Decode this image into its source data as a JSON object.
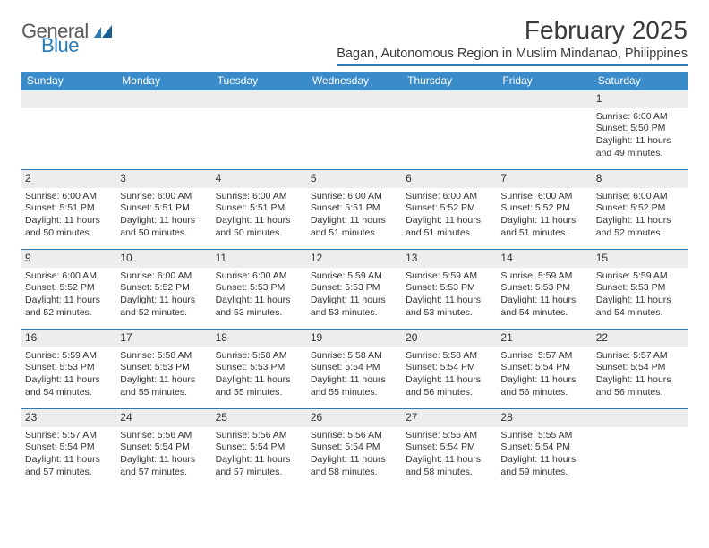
{
  "brand": {
    "general": "General",
    "blue": "Blue"
  },
  "title": "February 2025",
  "location": "Bagan, Autonomous Region in Muslim Mindanao, Philippines",
  "colors": {
    "header_bar": "#3a8bc9",
    "rule": "#2a7ab8",
    "daynum_bg": "#ededed",
    "text": "#333333",
    "logo_gray": "#5a5a5a",
    "logo_blue": "#2a7ab8",
    "background": "#ffffff"
  },
  "typography": {
    "title_fontsize": 28,
    "location_fontsize": 14.5,
    "dow_fontsize": 12,
    "daynum_fontsize": 12,
    "body_fontsize": 10.5
  },
  "dow": [
    "Sunday",
    "Monday",
    "Tuesday",
    "Wednesday",
    "Thursday",
    "Friday",
    "Saturday"
  ],
  "weeks": [
    [
      {
        "n": "",
        "sunrise": "",
        "sunset": "",
        "daylight": ""
      },
      {
        "n": "",
        "sunrise": "",
        "sunset": "",
        "daylight": ""
      },
      {
        "n": "",
        "sunrise": "",
        "sunset": "",
        "daylight": ""
      },
      {
        "n": "",
        "sunrise": "",
        "sunset": "",
        "daylight": ""
      },
      {
        "n": "",
        "sunrise": "",
        "sunset": "",
        "daylight": ""
      },
      {
        "n": "",
        "sunrise": "",
        "sunset": "",
        "daylight": ""
      },
      {
        "n": "1",
        "sunrise": "Sunrise: 6:00 AM",
        "sunset": "Sunset: 5:50 PM",
        "daylight": "Daylight: 11 hours and 49 minutes."
      }
    ],
    [
      {
        "n": "2",
        "sunrise": "Sunrise: 6:00 AM",
        "sunset": "Sunset: 5:51 PM",
        "daylight": "Daylight: 11 hours and 50 minutes."
      },
      {
        "n": "3",
        "sunrise": "Sunrise: 6:00 AM",
        "sunset": "Sunset: 5:51 PM",
        "daylight": "Daylight: 11 hours and 50 minutes."
      },
      {
        "n": "4",
        "sunrise": "Sunrise: 6:00 AM",
        "sunset": "Sunset: 5:51 PM",
        "daylight": "Daylight: 11 hours and 50 minutes."
      },
      {
        "n": "5",
        "sunrise": "Sunrise: 6:00 AM",
        "sunset": "Sunset: 5:51 PM",
        "daylight": "Daylight: 11 hours and 51 minutes."
      },
      {
        "n": "6",
        "sunrise": "Sunrise: 6:00 AM",
        "sunset": "Sunset: 5:52 PM",
        "daylight": "Daylight: 11 hours and 51 minutes."
      },
      {
        "n": "7",
        "sunrise": "Sunrise: 6:00 AM",
        "sunset": "Sunset: 5:52 PM",
        "daylight": "Daylight: 11 hours and 51 minutes."
      },
      {
        "n": "8",
        "sunrise": "Sunrise: 6:00 AM",
        "sunset": "Sunset: 5:52 PM",
        "daylight": "Daylight: 11 hours and 52 minutes."
      }
    ],
    [
      {
        "n": "9",
        "sunrise": "Sunrise: 6:00 AM",
        "sunset": "Sunset: 5:52 PM",
        "daylight": "Daylight: 11 hours and 52 minutes."
      },
      {
        "n": "10",
        "sunrise": "Sunrise: 6:00 AM",
        "sunset": "Sunset: 5:52 PM",
        "daylight": "Daylight: 11 hours and 52 minutes."
      },
      {
        "n": "11",
        "sunrise": "Sunrise: 6:00 AM",
        "sunset": "Sunset: 5:53 PM",
        "daylight": "Daylight: 11 hours and 53 minutes."
      },
      {
        "n": "12",
        "sunrise": "Sunrise: 5:59 AM",
        "sunset": "Sunset: 5:53 PM",
        "daylight": "Daylight: 11 hours and 53 minutes."
      },
      {
        "n": "13",
        "sunrise": "Sunrise: 5:59 AM",
        "sunset": "Sunset: 5:53 PM",
        "daylight": "Daylight: 11 hours and 53 minutes."
      },
      {
        "n": "14",
        "sunrise": "Sunrise: 5:59 AM",
        "sunset": "Sunset: 5:53 PM",
        "daylight": "Daylight: 11 hours and 54 minutes."
      },
      {
        "n": "15",
        "sunrise": "Sunrise: 5:59 AM",
        "sunset": "Sunset: 5:53 PM",
        "daylight": "Daylight: 11 hours and 54 minutes."
      }
    ],
    [
      {
        "n": "16",
        "sunrise": "Sunrise: 5:59 AM",
        "sunset": "Sunset: 5:53 PM",
        "daylight": "Daylight: 11 hours and 54 minutes."
      },
      {
        "n": "17",
        "sunrise": "Sunrise: 5:58 AM",
        "sunset": "Sunset: 5:53 PM",
        "daylight": "Daylight: 11 hours and 55 minutes."
      },
      {
        "n": "18",
        "sunrise": "Sunrise: 5:58 AM",
        "sunset": "Sunset: 5:53 PM",
        "daylight": "Daylight: 11 hours and 55 minutes."
      },
      {
        "n": "19",
        "sunrise": "Sunrise: 5:58 AM",
        "sunset": "Sunset: 5:54 PM",
        "daylight": "Daylight: 11 hours and 55 minutes."
      },
      {
        "n": "20",
        "sunrise": "Sunrise: 5:58 AM",
        "sunset": "Sunset: 5:54 PM",
        "daylight": "Daylight: 11 hours and 56 minutes."
      },
      {
        "n": "21",
        "sunrise": "Sunrise: 5:57 AM",
        "sunset": "Sunset: 5:54 PM",
        "daylight": "Daylight: 11 hours and 56 minutes."
      },
      {
        "n": "22",
        "sunrise": "Sunrise: 5:57 AM",
        "sunset": "Sunset: 5:54 PM",
        "daylight": "Daylight: 11 hours and 56 minutes."
      }
    ],
    [
      {
        "n": "23",
        "sunrise": "Sunrise: 5:57 AM",
        "sunset": "Sunset: 5:54 PM",
        "daylight": "Daylight: 11 hours and 57 minutes."
      },
      {
        "n": "24",
        "sunrise": "Sunrise: 5:56 AM",
        "sunset": "Sunset: 5:54 PM",
        "daylight": "Daylight: 11 hours and 57 minutes."
      },
      {
        "n": "25",
        "sunrise": "Sunrise: 5:56 AM",
        "sunset": "Sunset: 5:54 PM",
        "daylight": "Daylight: 11 hours and 57 minutes."
      },
      {
        "n": "26",
        "sunrise": "Sunrise: 5:56 AM",
        "sunset": "Sunset: 5:54 PM",
        "daylight": "Daylight: 11 hours and 58 minutes."
      },
      {
        "n": "27",
        "sunrise": "Sunrise: 5:55 AM",
        "sunset": "Sunset: 5:54 PM",
        "daylight": "Daylight: 11 hours and 58 minutes."
      },
      {
        "n": "28",
        "sunrise": "Sunrise: 5:55 AM",
        "sunset": "Sunset: 5:54 PM",
        "daylight": "Daylight: 11 hours and 59 minutes."
      },
      {
        "n": "",
        "sunrise": "",
        "sunset": "",
        "daylight": ""
      }
    ]
  ]
}
